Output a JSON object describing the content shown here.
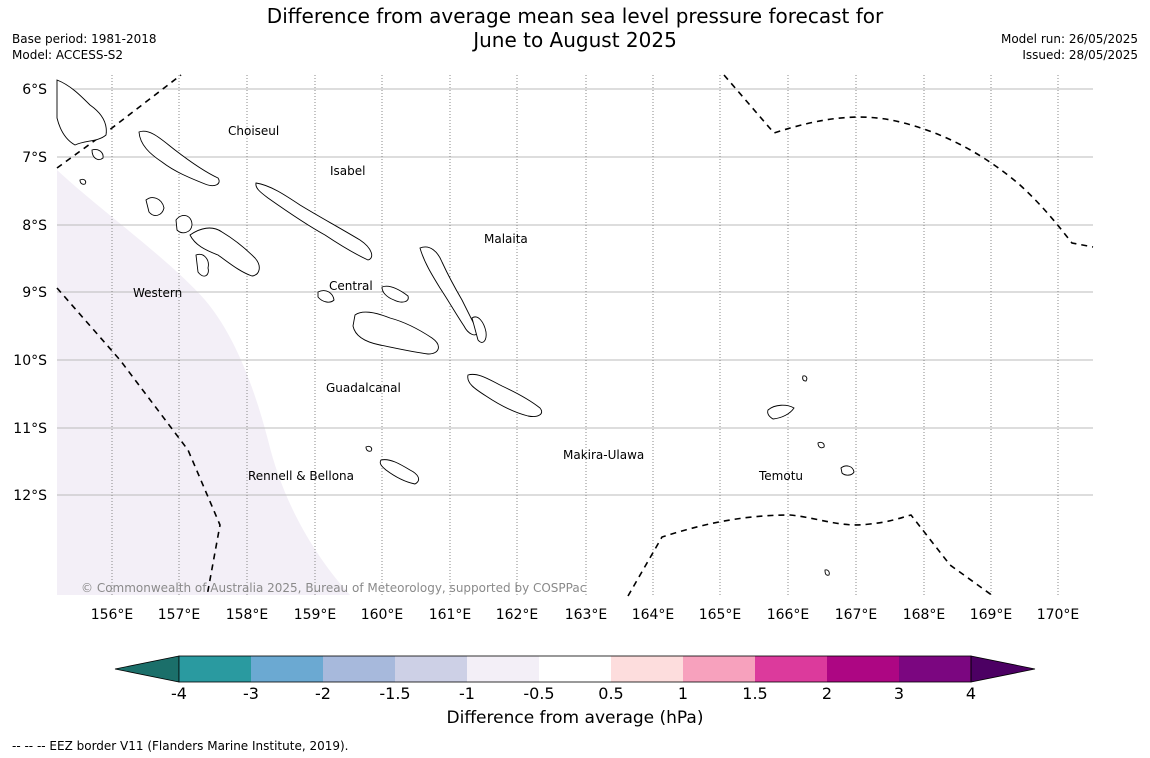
{
  "title_line1": "Difference from average mean sea level pressure forecast for",
  "title_line2": "June to August 2025",
  "meta_left": {
    "base_period": "Base period: 1981-2018",
    "model": "Model: ACCESS-S2"
  },
  "meta_right": {
    "model_run": "Model run: 26/05/2025",
    "issued": "Issued: 28/05/2025"
  },
  "latitude_labels": [
    "6°S",
    "7°S",
    "8°S",
    "9°S",
    "10°S",
    "11°S",
    "12°S"
  ],
  "longitude_labels": [
    "156°E",
    "157°E",
    "158°E",
    "159°E",
    "160°E",
    "161°E",
    "162°E",
    "163°E",
    "164°E",
    "165°E",
    "166°E",
    "167°E",
    "168°E",
    "169°E",
    "170°E"
  ],
  "place_labels": [
    "Choiseul",
    "Isabel",
    "Malaita",
    "Central",
    "Western",
    "Guadalcanal",
    "Makira-Ulawa",
    "Rennell & Bellona",
    "Temotu"
  ],
  "copyright": "© Commonwealth of Australia 2025, Bureau of Meteorology, supported by COSPPac",
  "colorbar": {
    "ticks": [
      "-4",
      "-3",
      "-2",
      "-1.5",
      "-1",
      "-0.5",
      "0.5",
      "1",
      "1.5",
      "2",
      "3",
      "4"
    ],
    "colors": [
      "#1b6f6a",
      "#2a9aa0",
      "#6ba9d2",
      "#a7b9dc",
      "#cdd0e6",
      "#f3eff7",
      "#ffffff",
      "#fddddd",
      "#f7a1bd",
      "#dc3a9c",
      "#ad0683",
      "#7b0680",
      "#4c0063"
    ],
    "label": "Difference from average (hPa)"
  },
  "legend_note": "--  --  -- EEZ border V11 (Flanders Marine Institute, 2019)."
}
